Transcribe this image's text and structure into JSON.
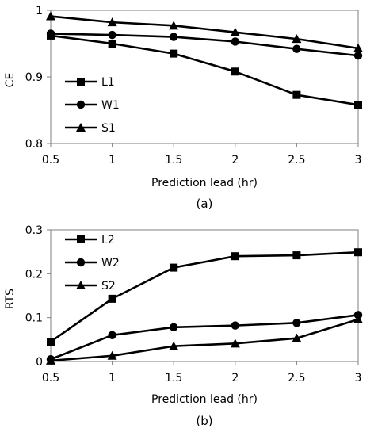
{
  "chart_data": [
    {
      "type": "line",
      "panel_label": "(a)",
      "xlabel": "Prediction lead (hr)",
      "ylabel": "CE",
      "x": [
        0.5,
        1,
        1.5,
        2,
        2.5,
        3
      ],
      "x_ticks": [
        "0.5",
        "1",
        "1.5",
        "2",
        "2.5",
        "3"
      ],
      "y_ticks": [
        "0.8",
        "0.9",
        "1"
      ],
      "xlim": [
        0.5,
        3
      ],
      "ylim": [
        0.8,
        1
      ],
      "grid": false,
      "legend_position": "left",
      "series": [
        {
          "name": "L1",
          "marker": "square",
          "values": [
            0.962,
            0.95,
            0.935,
            0.908,
            0.873,
            0.858
          ]
        },
        {
          "name": "W1",
          "marker": "circle",
          "values": [
            0.965,
            0.963,
            0.96,
            0.953,
            0.942,
            0.932
          ]
        },
        {
          "name": "S1",
          "marker": "triangle",
          "values": [
            0.991,
            0.982,
            0.977,
            0.967,
            0.957,
            0.943
          ]
        }
      ]
    },
    {
      "type": "line",
      "panel_label": "(b)",
      "xlabel": "Prediction lead (hr)",
      "ylabel": "RTS",
      "x": [
        0.5,
        1,
        1.5,
        2,
        2.5,
        3
      ],
      "x_ticks": [
        "0.5",
        "1",
        "1.5",
        "2",
        "2.5",
        "3"
      ],
      "y_ticks": [
        "0",
        "0.1",
        "0.2",
        "0.3"
      ],
      "xlim": [
        0.5,
        3
      ],
      "ylim": [
        0,
        0.3
      ],
      "grid": false,
      "legend_position": "top-left",
      "series": [
        {
          "name": "L2",
          "marker": "square",
          "values": [
            0.045,
            0.143,
            0.214,
            0.24,
            0.242,
            0.249
          ]
        },
        {
          "name": "W2",
          "marker": "circle",
          "values": [
            0.005,
            0.06,
            0.078,
            0.082,
            0.088,
            0.106
          ]
        },
        {
          "name": "S2",
          "marker": "triangle",
          "values": [
            0.002,
            0.013,
            0.035,
            0.041,
            0.053,
            0.096
          ]
        }
      ]
    }
  ]
}
